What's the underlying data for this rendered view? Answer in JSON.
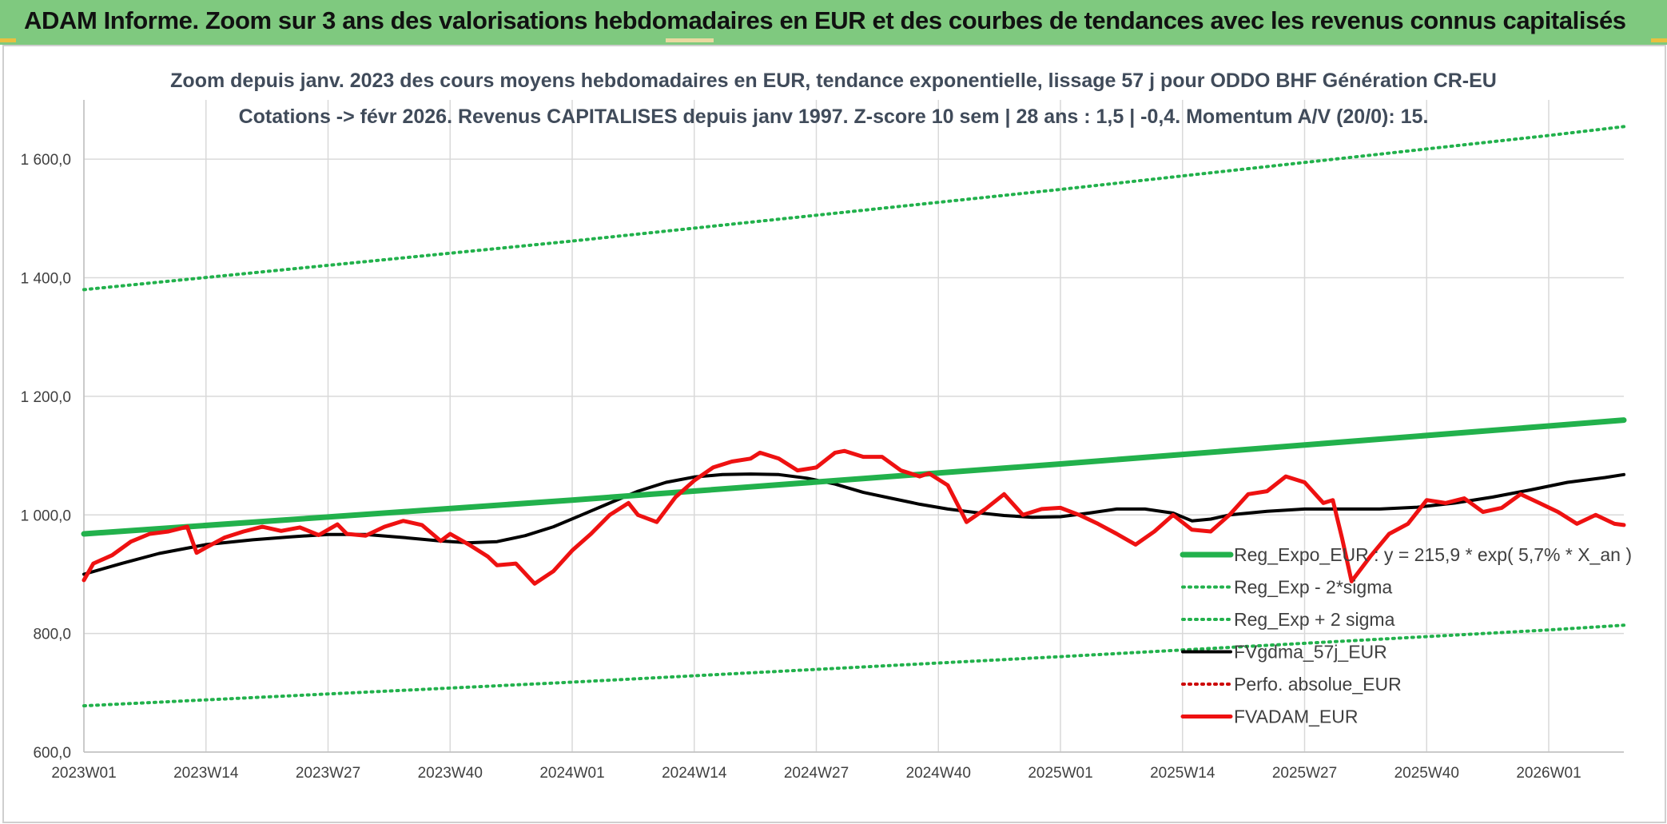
{
  "banner": {
    "title": "ADAM Informe. Zoom sur 3 ans des valorisations hebdomadaires en EUR et des courbes de tendances avec les revenus connus capitalisés"
  },
  "colors": {
    "banner_bg": "#7fc97f",
    "trend": "#22b14c",
    "fvadam": "#ee1111",
    "fvgdma": "#000000",
    "perfo": "#cc0000",
    "grid": "#d9d9d9"
  },
  "chart_data": {
    "type": "line",
    "title": "Zoom depuis janv. 2023 des cours moyens hebdomadaires en EUR, tendance exponentielle, lissage 57 j pour ODDO BHF Génération CR-EU",
    "subtitle": "Cotations -> févr 2026. Revenus CAPITALISES depuis janv 1997. Z-score 10 sem | 28 ans : 1,5 | -0,4. Momentum A/V (20/0): 15.",
    "xlabel": "",
    "ylabel": "",
    "ylim": [
      600,
      1700
    ],
    "yticks": [
      "600,0",
      "800,0",
      "1 000,0",
      "1 200,0",
      "1 400,0",
      "1 600,0"
    ],
    "ytick_values": [
      600,
      800,
      1000,
      1200,
      1400,
      1600
    ],
    "x_tick_labels": [
      "2023W01",
      "2023W14",
      "2023W27",
      "2023W40",
      "2024W01",
      "2024W14",
      "2024W27",
      "2024W40",
      "2025W01",
      "2025W14",
      "2025W27",
      "2025W40",
      "2026W01"
    ],
    "x_tick_index": [
      0,
      13,
      26,
      39,
      52,
      65,
      78,
      91,
      104,
      117,
      130,
      143,
      156
    ],
    "n_weeks": 165,
    "grid": true,
    "legend_position": "bottom-right",
    "series": [
      {
        "name": "Reg_Expo_EUR : y = 215,9 * exp( 5,7% *  X_an )",
        "style": "solid-thick",
        "color": "#22b14c",
        "knots": [
          [
            0,
            968
          ],
          [
            52,
            1025
          ],
          [
            104,
            1086
          ],
          [
            156,
            1150
          ],
          [
            164,
            1160
          ]
        ]
      },
      {
        "name": "Reg_Exp - 2*sigma",
        "style": "dotted",
        "color": "#22b14c",
        "knots": [
          [
            0,
            678
          ],
          [
            52,
            718
          ],
          [
            104,
            761
          ],
          [
            156,
            806
          ],
          [
            164,
            814
          ]
        ]
      },
      {
        "name": "Reg_Exp + 2 sigma",
        "style": "dotted",
        "color": "#22b14c",
        "knots": [
          [
            0,
            1380
          ],
          [
            52,
            1462
          ],
          [
            104,
            1549
          ],
          [
            156,
            1640
          ],
          [
            164,
            1655
          ]
        ]
      },
      {
        "name": "FVgdma_57j_EUR",
        "style": "solid",
        "color": "#000000",
        "knots": [
          [
            0,
            900
          ],
          [
            4,
            918
          ],
          [
            8,
            935
          ],
          [
            13,
            950
          ],
          [
            18,
            958
          ],
          [
            22,
            963
          ],
          [
            26,
            967
          ],
          [
            30,
            967
          ],
          [
            34,
            962
          ],
          [
            38,
            956
          ],
          [
            41,
            953
          ],
          [
            44,
            955
          ],
          [
            47,
            965
          ],
          [
            50,
            980
          ],
          [
            53,
            1000
          ],
          [
            56,
            1020
          ],
          [
            59,
            1040
          ],
          [
            62,
            1055
          ],
          [
            65,
            1064
          ],
          [
            68,
            1068
          ],
          [
            71,
            1069
          ],
          [
            74,
            1068
          ],
          [
            77,
            1062
          ],
          [
            80,
            1052
          ],
          [
            83,
            1038
          ],
          [
            86,
            1028
          ],
          [
            89,
            1018
          ],
          [
            92,
            1010
          ],
          [
            95,
            1004
          ],
          [
            98,
            999
          ],
          [
            101,
            996
          ],
          [
            104,
            997
          ],
          [
            107,
            1003
          ],
          [
            110,
            1010
          ],
          [
            113,
            1010
          ],
          [
            116,
            1003
          ],
          [
            118,
            990
          ],
          [
            120,
            993
          ],
          [
            122,
            1000
          ],
          [
            126,
            1006
          ],
          [
            130,
            1010
          ],
          [
            134,
            1010
          ],
          [
            138,
            1010
          ],
          [
            142,
            1013
          ],
          [
            146,
            1020
          ],
          [
            150,
            1030
          ],
          [
            154,
            1042
          ],
          [
            158,
            1055
          ],
          [
            162,
            1063
          ],
          [
            164,
            1068
          ]
        ]
      },
      {
        "name": "Perfo. absolue_EUR",
        "style": "dotted",
        "color": "#cc0000",
        "knots": []
      },
      {
        "name": "FVADAM_EUR",
        "style": "solid-thick",
        "color": "#ee1111",
        "knots": [
          [
            0,
            890
          ],
          [
            1,
            918
          ],
          [
            3,
            932
          ],
          [
            5,
            955
          ],
          [
            7,
            968
          ],
          [
            9,
            972
          ],
          [
            11,
            980
          ],
          [
            12,
            936
          ],
          [
            13,
            945
          ],
          [
            15,
            962
          ],
          [
            17,
            972
          ],
          [
            19,
            980
          ],
          [
            21,
            973
          ],
          [
            23,
            979
          ],
          [
            25,
            966
          ],
          [
            27,
            984
          ],
          [
            28,
            968
          ],
          [
            30,
            965
          ],
          [
            32,
            980
          ],
          [
            34,
            990
          ],
          [
            36,
            983
          ],
          [
            38,
            956
          ],
          [
            39,
            968
          ],
          [
            41,
            950
          ],
          [
            43,
            930
          ],
          [
            44,
            915
          ],
          [
            46,
            918
          ],
          [
            48,
            884
          ],
          [
            50,
            905
          ],
          [
            52,
            940
          ],
          [
            54,
            968
          ],
          [
            56,
            1000
          ],
          [
            58,
            1020
          ],
          [
            59,
            1000
          ],
          [
            61,
            988
          ],
          [
            63,
            1030
          ],
          [
            65,
            1058
          ],
          [
            67,
            1080
          ],
          [
            69,
            1090
          ],
          [
            71,
            1095
          ],
          [
            72,
            1105
          ],
          [
            74,
            1095
          ],
          [
            76,
            1075
          ],
          [
            78,
            1080
          ],
          [
            80,
            1105
          ],
          [
            81,
            1108
          ],
          [
            83,
            1098
          ],
          [
            85,
            1098
          ],
          [
            87,
            1075
          ],
          [
            89,
            1065
          ],
          [
            90,
            1070
          ],
          [
            92,
            1050
          ],
          [
            94,
            988
          ],
          [
            96,
            1010
          ],
          [
            98,
            1035
          ],
          [
            100,
            1000
          ],
          [
            102,
            1010
          ],
          [
            104,
            1012
          ],
          [
            106,
            1000
          ],
          [
            108,
            985
          ],
          [
            110,
            968
          ],
          [
            112,
            950
          ],
          [
            114,
            972
          ],
          [
            116,
            1000
          ],
          [
            118,
            975
          ],
          [
            120,
            972
          ],
          [
            122,
            1000
          ],
          [
            124,
            1035
          ],
          [
            126,
            1040
          ],
          [
            128,
            1065
          ],
          [
            130,
            1055
          ],
          [
            132,
            1020
          ],
          [
            133,
            1025
          ],
          [
            134,
            960
          ],
          [
            135,
            888
          ],
          [
            137,
            930
          ],
          [
            139,
            968
          ],
          [
            141,
            985
          ],
          [
            143,
            1025
          ],
          [
            145,
            1020
          ],
          [
            147,
            1028
          ],
          [
            149,
            1005
          ],
          [
            151,
            1012
          ],
          [
            153,
            1035
          ],
          [
            155,
            1020
          ],
          [
            157,
            1005
          ],
          [
            159,
            985
          ],
          [
            161,
            1000
          ],
          [
            163,
            985
          ],
          [
            164,
            983
          ]
        ]
      }
    ]
  }
}
